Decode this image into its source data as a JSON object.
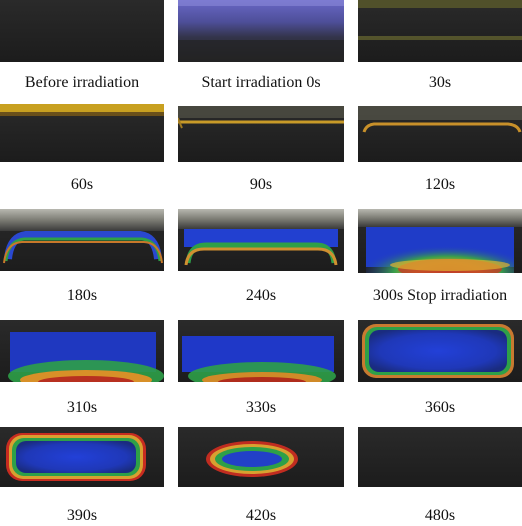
{
  "figure": {
    "panels": [
      {
        "label": "Before irradiation"
      },
      {
        "label": "Start irradiation 0s"
      },
      {
        "label": "30s"
      },
      {
        "label": "60s"
      },
      {
        "label": "90s"
      },
      {
        "label": "120s"
      },
      {
        "label": "180s"
      },
      {
        "label": "240s"
      },
      {
        "label": "300s Stop irradiation"
      },
      {
        "label": "310s"
      },
      {
        "label": "330s"
      },
      {
        "label": "360s"
      },
      {
        "label": "390s"
      },
      {
        "label": "420s"
      },
      {
        "label": "480s"
      }
    ]
  }
}
